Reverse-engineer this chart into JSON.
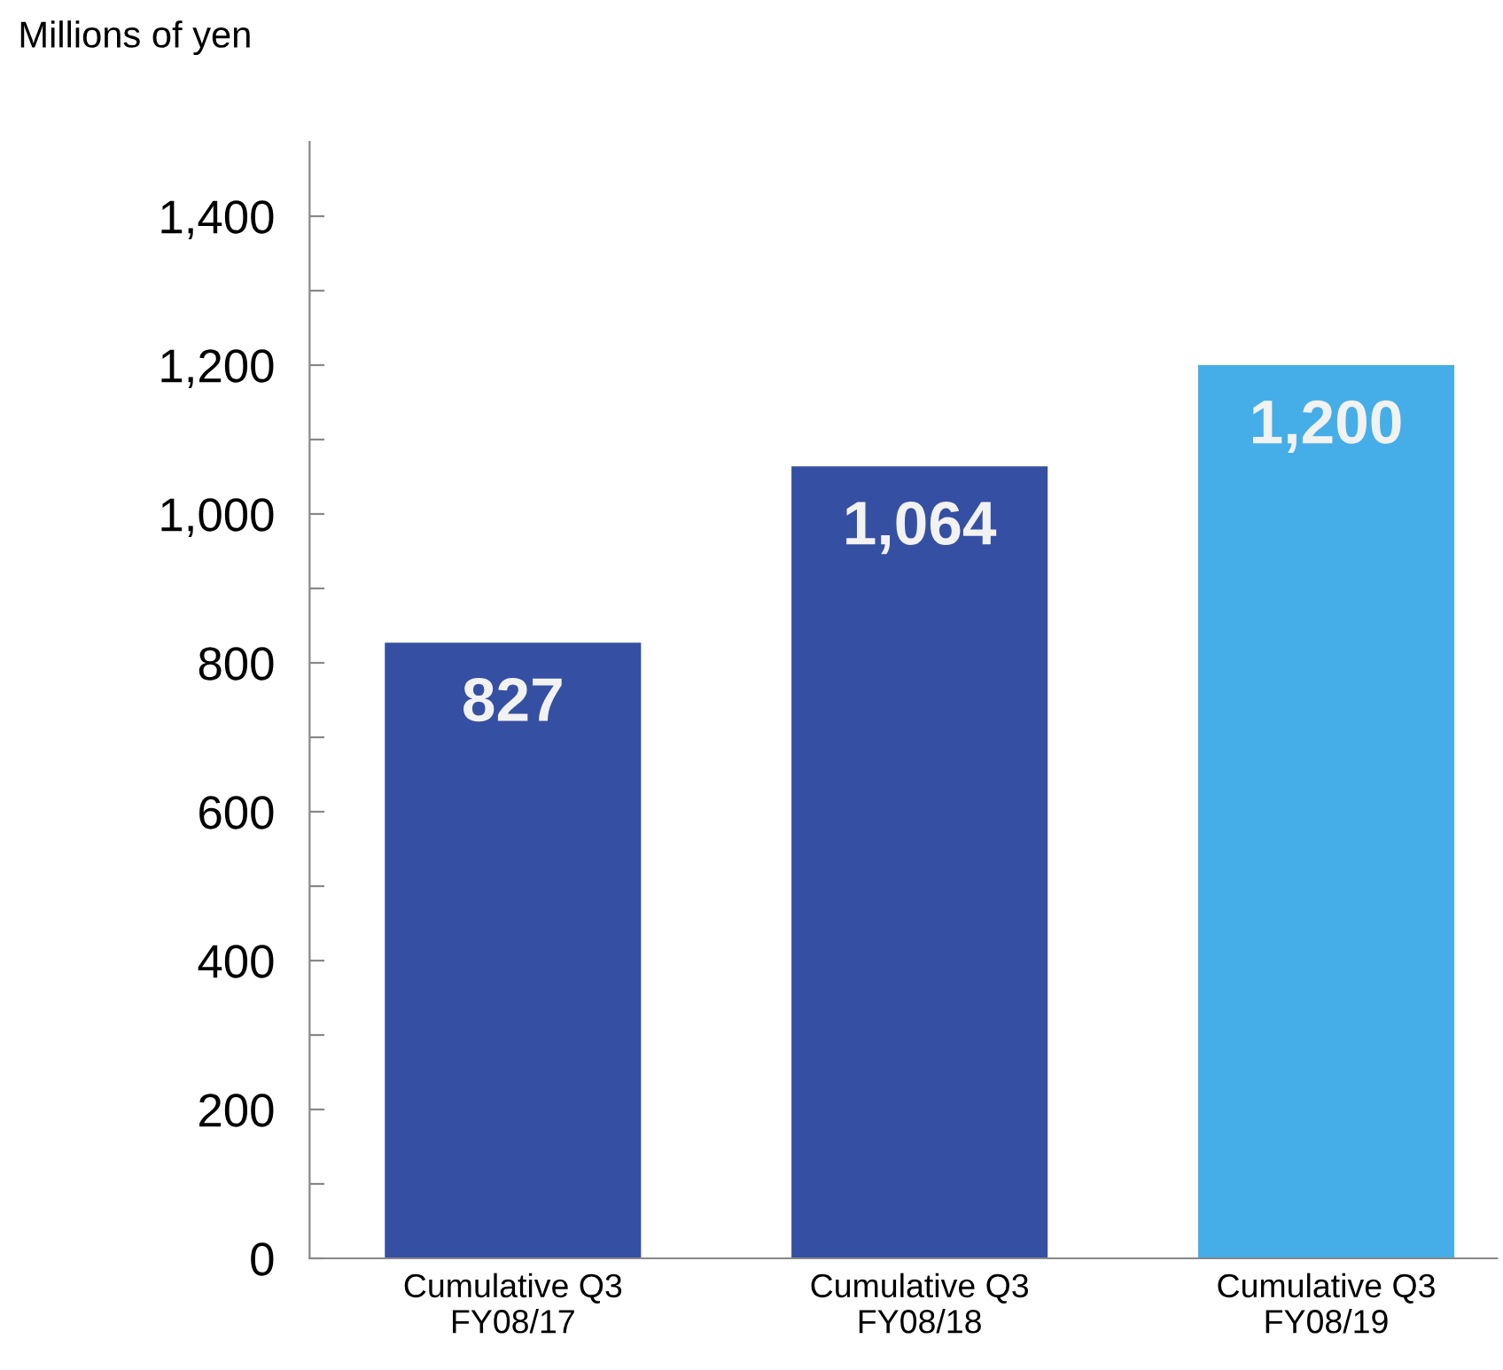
{
  "chart_data": {
    "type": "bar",
    "ylabel": "Millions of yen",
    "categories": [
      "Cumulative Q3\nFY08/17",
      "Cumulative Q3\nFY08/18",
      "Cumulative Q3\nFY08/19"
    ],
    "values": [
      827,
      1064,
      1200
    ],
    "colors": [
      "#354fa3",
      "#354fa3",
      "#45aee8"
    ],
    "value_labels": [
      "827",
      "1,064",
      "1,200"
    ],
    "ylim": [
      0,
      1500
    ],
    "yticks": [
      0,
      {
        "value": 100,
        "label": null
      },
      200,
      {
        "value": 300,
        "label": null
      },
      400,
      {
        "value": 500,
        "label": null
      },
      600,
      {
        "value": 700,
        "label": null
      },
      800,
      {
        "value": 900,
        "label": null
      },
      {
        "value": 1000,
        "label": "1,000"
      },
      {
        "value": 1100,
        "label": null
      },
      {
        "value": 1200,
        "label": "1,200"
      },
      {
        "value": 1300,
        "label": null
      },
      {
        "value": 1400,
        "label": "1,400"
      }
    ],
    "grid": false,
    "legend": false
  }
}
